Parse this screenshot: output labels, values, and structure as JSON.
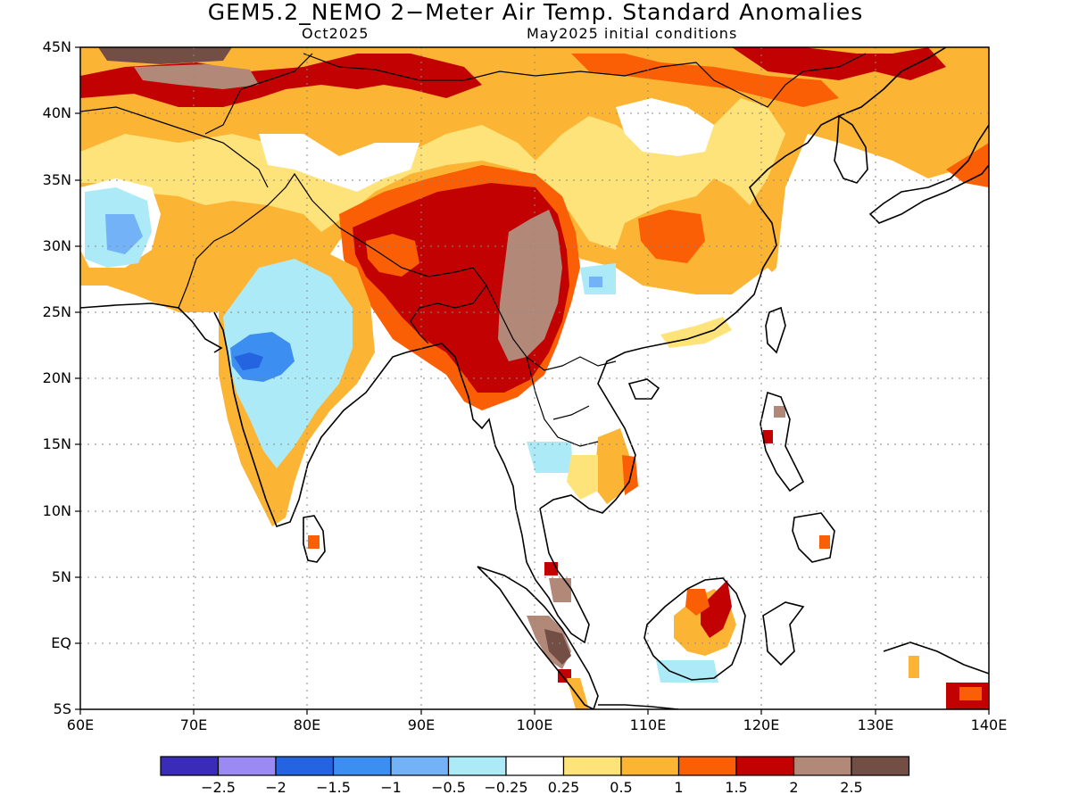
{
  "header": {
    "title": "GEM5.2_NEMO 2−Meter Air Temp. Standard Anomalies",
    "valid_month": "Oct2025",
    "init_conditions": "May2025 initial conditions"
  },
  "map": {
    "region": "South and East Asia",
    "lon_range": [
      60,
      140
    ],
    "lat_range": [
      -5,
      45
    ],
    "lat_labels": [
      "45N",
      "40N",
      "35N",
      "30N",
      "25N",
      "20N",
      "15N",
      "10N",
      "5N",
      "EQ",
      "5S"
    ],
    "lon_labels": [
      "60E",
      "70E",
      "80E",
      "90E",
      "100E",
      "110E",
      "120E",
      "130E",
      "140E"
    ],
    "grid": "dotted",
    "anomaly_regions": [
      {
        "area": "Tibetan Plateau / Myanmar",
        "category": "2 to 2.5"
      },
      {
        "area": "Northern Myanmar / Yunnan",
        "category": "1.5 to 2"
      },
      {
        "area": "Central India",
        "category": "-1.5 to -1"
      },
      {
        "area": "Western India",
        "category": "-2 to -1.5"
      },
      {
        "area": "Afghanistan / Iran",
        "category": "-1 to -0.5"
      },
      {
        "area": "Central Asia",
        "category": "2 to 2.5"
      },
      {
        "area": "Sumatra",
        "category": "2 to 2.5"
      },
      {
        "area": "Borneo",
        "category": "1.5 to 2"
      }
    ]
  },
  "colorbar": {
    "colors": [
      "#3a2bb9",
      "#9b89f4",
      "#2564e0",
      "#3d8ef1",
      "#74b2f8",
      "#aceaf7",
      "#ffffff",
      "#fde37a",
      "#fcb434",
      "#fb5f05",
      "#c20202",
      "#b28978",
      "#734e45"
    ],
    "labels": [
      "−2.5",
      "−2",
      "−1.5",
      "−1",
      "−0.5",
      "−0.25",
      "0.25",
      "0.5",
      "1",
      "1.5",
      "2",
      "2.5"
    ]
  }
}
